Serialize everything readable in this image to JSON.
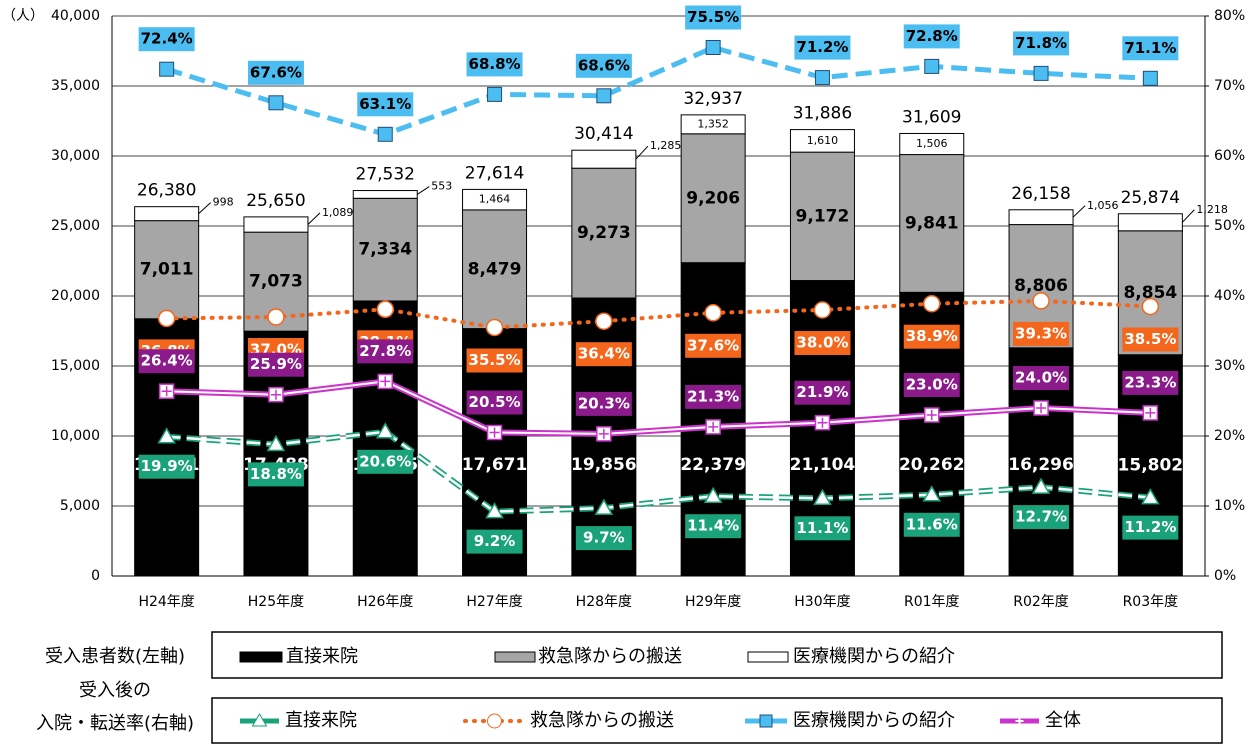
{
  "chart_data": {
    "type": "bar_line_combo",
    "y_unit_label": "（人）",
    "categories": [
      "H24年度",
      "H25年度",
      "H26年度",
      "H27年度",
      "H28年度",
      "H29年度",
      "H30年度",
      "R01年度",
      "R02年度",
      "R03年度"
    ],
    "series": [
      {
        "name": "直接来院",
        "color": "#000000",
        "values": [
          18371,
          17488,
          19645,
          17671,
          19856,
          22379,
          21104,
          20262,
          16296,
          15802
        ],
        "value_labels": [
          "18,371",
          "17,488",
          "19,645",
          "17,671",
          "19,856",
          "22,379",
          "21,104",
          "20,262",
          "16,296",
          "15,802"
        ]
      },
      {
        "name": "救急隊からの搬送",
        "color": "#a6a6a6",
        "values": [
          7011,
          7073,
          7334,
          8479,
          9273,
          9206,
          9172,
          9841,
          8806,
          8854
        ],
        "value_labels": [
          "7,011",
          "7,073",
          "7,334",
          "8,479",
          "9,273",
          "9,206",
          "9,172",
          "9,841",
          "8,806",
          "8,854"
        ]
      },
      {
        "name": "医療機関からの紹介",
        "color": "#ffffff",
        "values": [
          998,
          1089,
          553,
          1464,
          1285,
          1352,
          1610,
          1506,
          1056,
          1218
        ],
        "value_labels": [
          "998",
          "1,089",
          "553",
          "1,464",
          "1,285",
          "1,352",
          "1,610",
          "1,506",
          "1,056",
          "1,218"
        ]
      },
      {
        "name": "直接来院",
        "axis": "y2",
        "color": "#1aa37a",
        "values": [
          19.9,
          18.8,
          20.6,
          9.2,
          9.7,
          11.4,
          11.1,
          11.6,
          12.7,
          11.2
        ],
        "value_labels": [
          "19.9%",
          "18.8%",
          "20.6%",
          "9.2%",
          "9.7%",
          "11.4%",
          "11.1%",
          "11.6%",
          "12.7%",
          "11.2%"
        ]
      },
      {
        "name": "救急隊からの搬送",
        "axis": "y2",
        "color": "#f4661b",
        "values": [
          36.8,
          37.0,
          38.1,
          35.5,
          36.4,
          37.6,
          38.0,
          38.9,
          39.3,
          38.5
        ],
        "value_labels": [
          "36.8%",
          "37.0%",
          "38.1%",
          "35.5%",
          "36.4%",
          "37.6%",
          "38.0%",
          "38.9%",
          "39.3%",
          "38.5%"
        ]
      },
      {
        "name": "医療機関からの紹介",
        "axis": "y2",
        "color": "#4bbdf0",
        "values": [
          72.4,
          67.6,
          63.1,
          68.8,
          68.6,
          75.5,
          71.2,
          72.8,
          71.8,
          71.1
        ],
        "value_labels": [
          "72.4%",
          "67.6%",
          "63.1%",
          "68.8%",
          "68.6%",
          "75.5%",
          "71.2%",
          "72.8%",
          "71.8%",
          "71.1%"
        ]
      },
      {
        "name": "全体",
        "axis": "y2",
        "color": "#cc33cc",
        "values": [
          26.4,
          25.9,
          27.8,
          20.5,
          20.3,
          21.3,
          21.9,
          23.0,
          24.0,
          23.3
        ],
        "value_labels": [
          "26.4%",
          "25.9%",
          "27.8%",
          "20.5%",
          "20.3%",
          "21.3%",
          "21.9%",
          "23.0%",
          "24.0%",
          "23.3%"
        ]
      }
    ],
    "totals": [
      26380,
      25650,
      27532,
      27614,
      30414,
      32937,
      31886,
      31609,
      26158,
      25874
    ],
    "total_labels": [
      "26,380",
      "25,650",
      "27,532",
      "27,614",
      "30,414",
      "32,937",
      "31,886",
      "31,609",
      "26,158",
      "25,874"
    ],
    "ylim": [
      0,
      40000
    ],
    "yticks": [
      0,
      {
        "value": 5000,
        "label": "5,000"
      },
      {
        "value": 10000,
        "label": "10,000"
      },
      {
        "value": 15000,
        "label": "15,000"
      },
      {
        "value": 20000,
        "label": "20,000"
      },
      {
        "value": 25000,
        "label": "25,000"
      },
      {
        "value": 30000,
        "label": "30,000"
      },
      {
        "value": 35000,
        "label": "35,000"
      },
      {
        "value": 40000,
        "label": "40,000"
      }
    ],
    "y2lim": [
      0,
      80
    ],
    "y2ticks": [
      {
        "value": 0,
        "label": "0%"
      },
      {
        "value": 10,
        "label": "10%"
      },
      {
        "value": 20,
        "label": "20%"
      },
      {
        "value": 30,
        "label": "30%"
      },
      {
        "value": 40,
        "label": "40%"
      },
      {
        "value": 50,
        "label": "50%"
      },
      {
        "value": 60,
        "label": "60%"
      },
      {
        "value": 70,
        "label": "70%"
      },
      {
        "value": 80,
        "label": "80%"
      }
    ],
    "grid": true,
    "legend_groups": [
      {
        "label": "受入患者数(左軸)"
      },
      {
        "label_lines": [
          "受入後の",
          "入院・転送率(右軸)"
        ]
      }
    ]
  }
}
